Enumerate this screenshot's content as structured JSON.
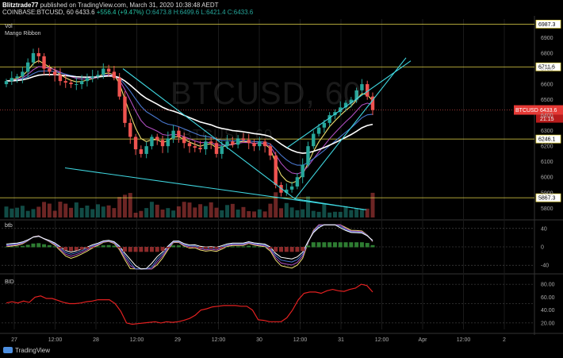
{
  "header": {
    "author": "Blitztrade77",
    "published": "published on TradingView.com, March 31, 2020 10:38:48 AEDT",
    "symbol_line": "COINBASE:BTCUSD, 60",
    "last": "6433.6",
    "change": "+556.4 (+9.47%)",
    "ohlc": "O:6473.8  H:6499.6  L:6421.4  C:6433.6"
  },
  "indicators": {
    "vol": "Vol",
    "ribbon": "Mango Ribbon",
    "pane2": "btb",
    "pane3": "BID"
  },
  "watermark": {
    "sym": "BTCUSD",
    "res": "60",
    "sub": "BTCUSD, 60"
  },
  "brand": "TradingView",
  "price_tag": {
    "label": "BTCUSD",
    "value": "6433.6",
    "timer": "21:15"
  },
  "chart_data": [
    {
      "type": "candlestick",
      "series": [
        {
          "name": "Mango Ribbon fast",
          "color": "#f0e070"
        },
        {
          "name": "Mango Ribbon mid",
          "color": "#b04ec0"
        },
        {
          "name": "Mango Ribbon slow",
          "color": "#4a78d0"
        },
        {
          "name": "Mango Ribbon base",
          "color": "#ffffff"
        }
      ],
      "x_labels": [
        "27",
        "12:00",
        "28",
        "12:00",
        "29",
        "12:00",
        "30",
        "12:00",
        "31",
        "12:00",
        "Apr",
        "12:00",
        "2"
      ],
      "y_ticks": [
        5800,
        5900,
        6000,
        6100,
        6200,
        6300,
        6400,
        6500,
        6600,
        6700,
        6800,
        6900
      ],
      "ylim": [
        5740,
        7020
      ],
      "horizontal_levels": [
        {
          "value": 6987.3,
          "label": "6987.3"
        },
        {
          "value": 6711.6,
          "label": "6711.6"
        },
        {
          "value": 6246.1,
          "label": "6246.1"
        },
        {
          "value": 5867.3,
          "label": "5867.3"
        }
      ],
      "price_close": [
        6620,
        6640,
        6650,
        6680,
        6740,
        6800,
        6780,
        6700,
        6680,
        6660,
        6620,
        6610,
        6600,
        6600,
        6620,
        6640,
        6650,
        6660,
        6700,
        6680,
        6640,
        6520,
        6350,
        6260,
        6180,
        6150,
        6200,
        6260,
        6240,
        6200,
        6250,
        6300,
        6260,
        6220,
        6200,
        6190,
        6180,
        6230,
        6220,
        6150,
        6200,
        6230,
        6210,
        6250,
        6240,
        6220,
        6200,
        6230,
        6200,
        6140,
        5950,
        5900,
        5920,
        5940,
        6000,
        6080,
        6200,
        6280,
        6320,
        6350,
        6400,
        6420,
        6450,
        6480,
        6500,
        6560,
        6600,
        6520,
        6433.6
      ]
    },
    {
      "type": "line",
      "title": "btb",
      "y_ticks": [
        -40,
        0,
        40
      ],
      "ylim": [
        -50,
        50
      ]
    },
    {
      "type": "line",
      "title": "BID",
      "y_ticks": [
        20,
        40,
        60,
        80
      ],
      "ylim": [
        10,
        90
      ],
      "series": [
        {
          "name": "BID",
          "color": "#e22020",
          "values": [
            51,
            53,
            51,
            54,
            52,
            60,
            62,
            58,
            58,
            55,
            52,
            50,
            50,
            51,
            53,
            54,
            56,
            56,
            56,
            50,
            38,
            20,
            18,
            19,
            20,
            21,
            22,
            20,
            22,
            21,
            22,
            24,
            27,
            32,
            40,
            42,
            45,
            46,
            47,
            47,
            47,
            46,
            46,
            40,
            25,
            24,
            22,
            22,
            22,
            28,
            40,
            56,
            66,
            68,
            68,
            66,
            70,
            72,
            70,
            69,
            72,
            74,
            80,
            78,
            68
          ]
        }
      ]
    }
  ]
}
